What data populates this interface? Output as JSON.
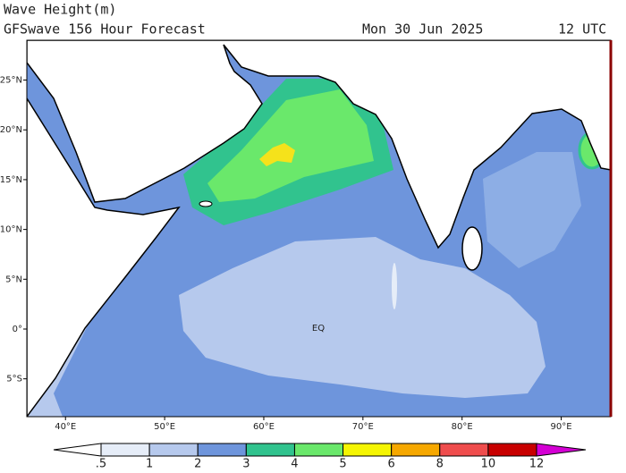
{
  "header": {
    "title": "Wave Height(m)",
    "subtitle": "GFSwave 156 Hour Forecast",
    "date": "Mon 30 Jun 2025",
    "time": "12 UTC"
  },
  "map": {
    "lonlim": [
      36.1,
      95
    ],
    "latlim": [
      -8.8,
      29
    ],
    "lon_ticks": [
      {
        "value": 40,
        "label": "40°E"
      },
      {
        "value": 50,
        "label": "50°E"
      },
      {
        "value": 60,
        "label": "60°E"
      },
      {
        "value": 70,
        "label": "70°E"
      },
      {
        "value": 80,
        "label": "80°E"
      },
      {
        "value": 90,
        "label": "90°E"
      }
    ],
    "lat_ticks": [
      {
        "value": 25,
        "label": "25°N"
      },
      {
        "value": 20,
        "label": "20°N"
      },
      {
        "value": 15,
        "label": "15°N"
      },
      {
        "value": 10,
        "label": "10°N"
      },
      {
        "value": 5,
        "label": "5°N"
      },
      {
        "value": 0,
        "label": "0°"
      },
      {
        "value": -5,
        "label": "5°S"
      }
    ],
    "equator_label": "EQ"
  },
  "colorbar": {
    "ticks": [
      {
        "value": 0.5,
        "label": ".5"
      },
      1,
      2,
      3,
      4,
      5,
      6,
      8,
      10,
      12
    ],
    "colors": [
      "#ffffff",
      "#e6edf8",
      "#b6c9ed",
      "#6e95dc",
      "#31c38e",
      "#6ae86b",
      "#f5f502",
      "#f6a800",
      "#ef4d4d",
      "#c80000",
      "#d400d4"
    ]
  }
}
